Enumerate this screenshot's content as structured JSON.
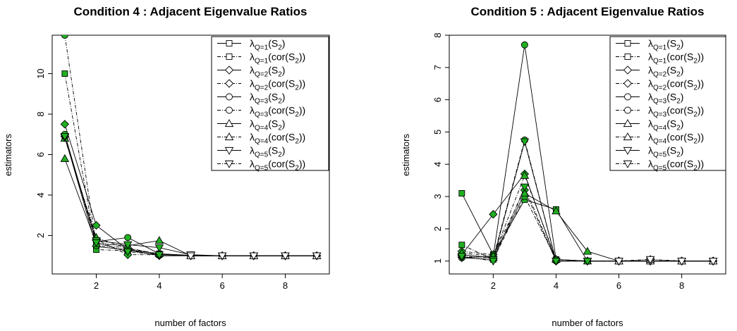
{
  "chart_data": [
    {
      "type": "line",
      "title": "Condition 4 : Adjacent Eigenvalue Ratios",
      "xlabel": "number of factors",
      "ylabel": "estimators",
      "xlim": [
        0.6,
        9.4
      ],
      "ylim": [
        0.1,
        11.9
      ],
      "xticks": [
        2,
        4,
        6,
        8
      ],
      "yticks": [
        2,
        4,
        6,
        8,
        10
      ],
      "legend_position": "top-right",
      "x": [
        1,
        2,
        3,
        4,
        5,
        6,
        7,
        8,
        9
      ],
      "series": [
        {
          "name": "S₂",
          "label_main": "λ",
          "label_sub": "Q=1",
          "label_arg": "(S",
          "label_argsub": "2",
          "label_end": ")",
          "marker": "square",
          "dash": "solid",
          "values": [
            6.9,
            1.45,
            1.3,
            1.1,
            1.02,
            1.0,
            1.0,
            1.0,
            1.0
          ]
        },
        {
          "name": "cor(S₂)",
          "label_main": "λ",
          "label_sub": "Q=1",
          "label_arg": "(cor(S",
          "label_argsub": "2",
          "label_end": "))",
          "marker": "square",
          "dash": "dashdot",
          "values": [
            10.0,
            1.3,
            1.25,
            1.05,
            1.0,
            1.0,
            1.0,
            1.0,
            1.0
          ]
        },
        {
          "name": "S₂",
          "label_main": "λ",
          "label_sub": "Q=2",
          "label_arg": "(S",
          "label_argsub": "2",
          "label_end": ")",
          "marker": "diamond",
          "dash": "solid",
          "values": [
            7.5,
            2.5,
            1.3,
            1.0,
            1.0,
            1.0,
            1.0,
            1.0,
            1.0
          ]
        },
        {
          "name": "cor(S₂)",
          "label_main": "λ",
          "label_sub": "Q=2",
          "label_arg": "(cor(S",
          "label_argsub": "2",
          "label_end": "))",
          "marker": "diamond",
          "dash": "dashdot",
          "values": [
            6.9,
            1.8,
            1.05,
            1.05,
            1.0,
            1.0,
            1.0,
            1.0,
            1.0
          ]
        },
        {
          "name": "S₂",
          "label_main": "λ",
          "label_sub": "Q=3",
          "label_arg": "(S",
          "label_argsub": "2",
          "label_end": ")",
          "marker": "circle",
          "dash": "solid",
          "values": [
            7.0,
            1.7,
            1.9,
            1.1,
            1.0,
            1.0,
            1.0,
            1.0,
            1.0
          ]
        },
        {
          "name": "cor(S₂)",
          "label_main": "λ",
          "label_sub": "Q=3",
          "label_arg": "(cor(S",
          "label_argsub": "2",
          "label_end": "))",
          "marker": "circle",
          "dash": "dashdot",
          "values": [
            11.9,
            1.5,
            1.4,
            1.05,
            1.0,
            1.0,
            1.0,
            1.0,
            1.0
          ]
        },
        {
          "name": "S₂",
          "label_main": "λ",
          "label_sub": "Q=4",
          "label_arg": "(S",
          "label_argsub": "2",
          "label_end": ")",
          "marker": "triangle-up",
          "dash": "solid",
          "values": [
            5.8,
            1.6,
            1.5,
            1.75,
            1.0,
            1.0,
            1.0,
            1.0,
            1.0
          ]
        },
        {
          "name": "cor(S₂)",
          "label_main": "λ",
          "label_sub": "Q=4",
          "label_arg": "(cor(S",
          "label_argsub": "2",
          "label_end": "))",
          "marker": "triangle-up",
          "dash": "dashdot",
          "values": [
            6.8,
            1.9,
            1.35,
            1.1,
            1.0,
            1.0,
            1.0,
            1.0,
            1.0
          ]
        },
        {
          "name": "S₂",
          "label_main": "λ",
          "label_sub": "Q=5",
          "label_arg": "(S",
          "label_argsub": "2",
          "label_end": ")",
          "marker": "triangle-down",
          "dash": "solid",
          "values": [
            6.85,
            1.75,
            1.55,
            1.4,
            1.05,
            1.0,
            1.0,
            1.0,
            1.0
          ]
        },
        {
          "name": "cor(S₂)",
          "label_main": "λ",
          "label_sub": "Q=5",
          "label_arg": "(cor(S",
          "label_argsub": "2",
          "label_end": "))",
          "marker": "triangle-down",
          "dash": "dashdot",
          "values": [
            6.9,
            1.65,
            1.2,
            1.05,
            1.0,
            1.0,
            1.0,
            1.0,
            1.0
          ]
        }
      ]
    },
    {
      "type": "line",
      "title": "Condition 5 : Adjacent Eigenvalue Ratios",
      "xlabel": "number of factors",
      "ylabel": "estimators",
      "xlim": [
        0.6,
        9.4
      ],
      "ylim": [
        0.6,
        8.0
      ],
      "xticks": [
        2,
        4,
        6,
        8
      ],
      "yticks": [
        1,
        2,
        3,
        4,
        5,
        6,
        7,
        8
      ],
      "legend_position": "top-right",
      "x": [
        1,
        2,
        3,
        4,
        5,
        6,
        7,
        8,
        9
      ],
      "series": [
        {
          "name": "S₂",
          "label_main": "λ",
          "label_sub": "Q=1",
          "label_arg": "(S",
          "label_argsub": "2",
          "label_end": ")",
          "marker": "square",
          "dash": "solid",
          "values": [
            3.1,
            1.2,
            2.9,
            2.6,
            1.0,
            1.0,
            1.0,
            1.0,
            1.0
          ]
        },
        {
          "name": "cor(S₂)",
          "label_main": "λ",
          "label_sub": "Q=1",
          "label_arg": "(cor(S",
          "label_argsub": "2",
          "label_end": "))",
          "marker": "square",
          "dash": "dashdot",
          "values": [
            1.5,
            1.05,
            3.0,
            1.05,
            1.0,
            1.0,
            1.0,
            1.0,
            1.0
          ]
        },
        {
          "name": "S₂",
          "label_main": "λ",
          "label_sub": "Q=2",
          "label_arg": "(S",
          "label_argsub": "2",
          "label_end": ")",
          "marker": "diamond",
          "dash": "solid",
          "values": [
            1.2,
            2.45,
            3.7,
            1.0,
            1.0,
            1.0,
            1.0,
            1.0,
            1.0
          ]
        },
        {
          "name": "cor(S₂)",
          "label_main": "λ",
          "label_sub": "Q=2",
          "label_arg": "(cor(S",
          "label_argsub": "2",
          "label_end": "))",
          "marker": "diamond",
          "dash": "dashdot",
          "values": [
            1.3,
            1.2,
            3.2,
            1.0,
            1.0,
            1.0,
            1.0,
            1.0,
            1.0
          ]
        },
        {
          "name": "S₂",
          "label_main": "λ",
          "label_sub": "Q=3",
          "label_arg": "(S",
          "label_argsub": "2",
          "label_end": ")",
          "marker": "circle",
          "dash": "solid",
          "values": [
            1.1,
            1.15,
            7.7,
            1.05,
            1.0,
            1.0,
            1.0,
            1.0,
            1.0
          ]
        },
        {
          "name": "cor(S₂)",
          "label_main": "λ",
          "label_sub": "Q=3",
          "label_arg": "(cor(S",
          "label_argsub": "2",
          "label_end": "))",
          "marker": "circle",
          "dash": "dashdot",
          "values": [
            1.15,
            1.1,
            4.75,
            1.0,
            1.0,
            1.0,
            1.0,
            1.0,
            1.0
          ]
        },
        {
          "name": "S₂",
          "label_main": "λ",
          "label_sub": "Q=4",
          "label_arg": "(S",
          "label_argsub": "2",
          "label_end": ")",
          "marker": "triangle-up",
          "dash": "solid",
          "values": [
            1.2,
            1.1,
            3.1,
            2.55,
            1.3,
            1.0,
            1.0,
            1.0,
            1.0
          ]
        },
        {
          "name": "cor(S₂)",
          "label_main": "λ",
          "label_sub": "Q=4",
          "label_arg": "(cor(S",
          "label_argsub": "2",
          "label_end": "))",
          "marker": "triangle-up",
          "dash": "dashdot",
          "values": [
            1.25,
            1.15,
            3.65,
            1.05,
            1.0,
            1.0,
            1.05,
            1.0,
            1.0
          ]
        },
        {
          "name": "S₂",
          "label_main": "λ",
          "label_sub": "Q=5",
          "label_arg": "(S",
          "label_argsub": "2",
          "label_end": ")",
          "marker": "triangle-down",
          "dash": "solid",
          "values": [
            1.1,
            1.05,
            4.7,
            1.0,
            1.0,
            1.0,
            1.0,
            1.0,
            1.0
          ]
        },
        {
          "name": "cor(S₂)",
          "label_main": "λ",
          "label_sub": "Q=5",
          "label_arg": "(cor(S",
          "label_argsub": "2",
          "label_end": "))",
          "marker": "triangle-down",
          "dash": "dashdot",
          "values": [
            1.15,
            1.0,
            3.3,
            1.0,
            1.0,
            1.0,
            1.05,
            1.0,
            1.0
          ]
        }
      ]
    }
  ],
  "colors": {
    "highlight_fill": "#20b020",
    "line": "#000000",
    "marker_fill": "#ffffff"
  },
  "highlight": {
    "note_points_filled_green": [
      {
        "panel": 0,
        "x": [
          1,
          2,
          3,
          4
        ]
      },
      {
        "panel": 1,
        "x": [
          1,
          2,
          3,
          4,
          5
        ]
      }
    ]
  }
}
